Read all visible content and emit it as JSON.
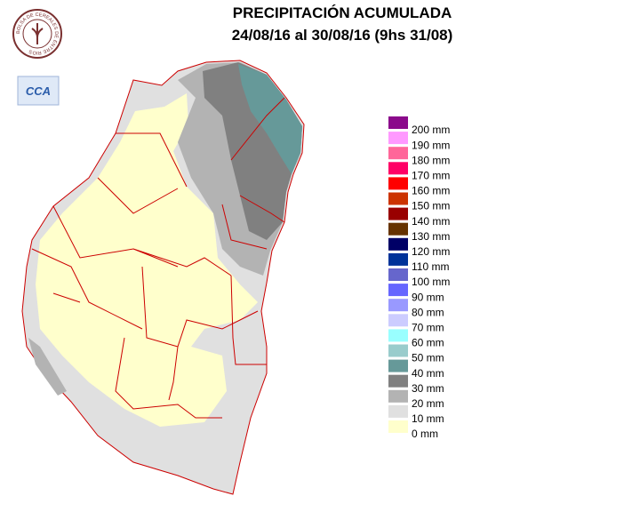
{
  "title": "PRECIPITACIÓN ACUMULADA",
  "subtitle": "24/08/16 al 30/08/16 (9hs 31/08)",
  "logo": {
    "ring_text": "BOLSA DE CEREALES DE ENTRE RIOS",
    "badge": "CCA"
  },
  "legend": [
    {
      "label": "200 mm",
      "color": "#8b0a8b"
    },
    {
      "label": "190 mm",
      "color": "#ff99ff"
    },
    {
      "label": "180 mm",
      "color": "#ff6699"
    },
    {
      "label": "170 mm",
      "color": "#ff0066"
    },
    {
      "label": "160 mm",
      "color": "#ff0000"
    },
    {
      "label": "150 mm",
      "color": "#cc3300"
    },
    {
      "label": "140 mm",
      "color": "#990000"
    },
    {
      "label": "130 mm",
      "color": "#663300"
    },
    {
      "label": "120 mm",
      "color": "#000066"
    },
    {
      "label": "110 mm",
      "color": "#003399"
    },
    {
      "label": "100 mm",
      "color": "#6666cc"
    },
    {
      "label": "90 mm",
      "color": "#6666ff"
    },
    {
      "label": "80 mm",
      "color": "#9999ff"
    },
    {
      "label": "70 mm",
      "color": "#ccccff"
    },
    {
      "label": "60 mm",
      "color": "#99ffff"
    },
    {
      "label": "50 mm",
      "color": "#99cccc"
    },
    {
      "label": "40 mm",
      "color": "#669999"
    },
    {
      "label": "30 mm",
      "color": "#808080"
    },
    {
      "label": "20 mm",
      "color": "#b3b3b3"
    },
    {
      "label": "10 mm",
      "color": "#e0e0e0"
    },
    {
      "label": "0 mm",
      "color": "#ffffcc"
    }
  ]
}
